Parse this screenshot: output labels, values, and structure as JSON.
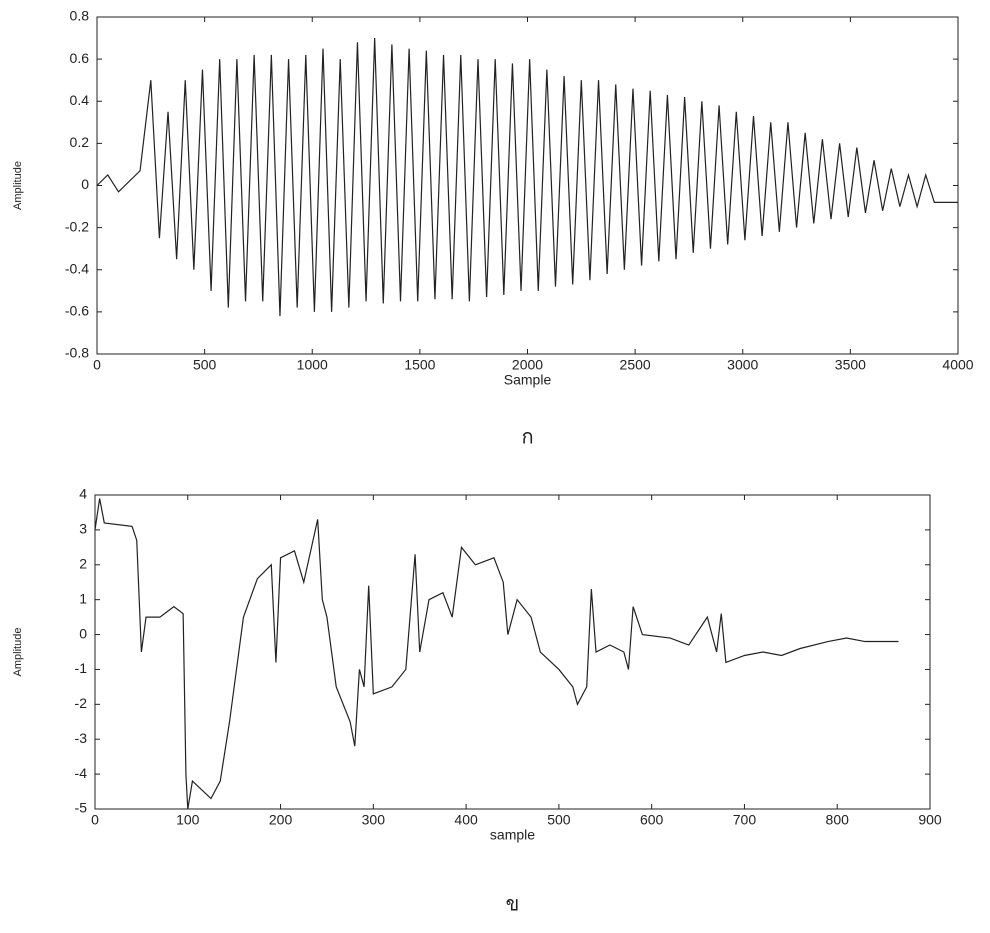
{
  "chart_data": [
    {
      "type": "line",
      "x_label": "Sample",
      "y_label": "Amplitude",
      "caption": "ก",
      "xlim": [
        0,
        4000
      ],
      "xticks": [
        0,
        500,
        1000,
        1500,
        2000,
        2500,
        3000,
        3500,
        4000
      ],
      "ylim": [
        -0.8,
        0.8
      ],
      "yticks": [
        -0.8,
        -0.6,
        -0.4,
        -0.2,
        0,
        0.2,
        0.4,
        0.6,
        0.8
      ],
      "x": [
        0,
        50,
        100,
        200,
        250,
        290,
        330,
        370,
        410,
        450,
        490,
        530,
        570,
        610,
        650,
        690,
        730,
        770,
        810,
        850,
        890,
        930,
        970,
        1010,
        1050,
        1090,
        1130,
        1170,
        1210,
        1250,
        1290,
        1330,
        1370,
        1410,
        1450,
        1490,
        1530,
        1570,
        1610,
        1650,
        1690,
        1730,
        1770,
        1810,
        1850,
        1890,
        1930,
        1970,
        2010,
        2050,
        2090,
        2130,
        2170,
        2210,
        2250,
        2290,
        2330,
        2370,
        2410,
        2450,
        2490,
        2530,
        2570,
        2610,
        2650,
        2690,
        2730,
        2770,
        2810,
        2850,
        2890,
        2930,
        2970,
        3010,
        3050,
        3090,
        3130,
        3170,
        3210,
        3250,
        3290,
        3330,
        3370,
        3410,
        3450,
        3490,
        3530,
        3570,
        3610,
        3650,
        3690,
        3730,
        3770,
        3810,
        3850,
        3890,
        4000
      ],
      "series": [
        {
          "color": "#222222",
          "values": [
            0,
            0.05,
            -0.03,
            0.07,
            0.5,
            -0.25,
            0.35,
            -0.35,
            0.5,
            -0.4,
            0.55,
            -0.5,
            0.6,
            -0.58,
            0.6,
            -0.55,
            0.62,
            -0.55,
            0.62,
            -0.62,
            0.6,
            -0.58,
            0.62,
            -0.6,
            0.65,
            -0.6,
            0.6,
            -0.58,
            0.68,
            -0.55,
            0.7,
            -0.56,
            0.67,
            -0.55,
            0.65,
            -0.55,
            0.64,
            -0.54,
            0.62,
            -0.54,
            0.62,
            -0.55,
            0.6,
            -0.53,
            0.6,
            -0.52,
            0.58,
            -0.5,
            0.6,
            -0.5,
            0.55,
            -0.48,
            0.52,
            -0.47,
            0.5,
            -0.45,
            0.5,
            -0.42,
            0.48,
            -0.4,
            0.46,
            -0.38,
            0.45,
            -0.36,
            0.43,
            -0.35,
            0.42,
            -0.32,
            0.4,
            -0.3,
            0.38,
            -0.28,
            0.35,
            -0.26,
            0.33,
            -0.24,
            0.3,
            -0.22,
            0.3,
            -0.2,
            0.25,
            -0.18,
            0.22,
            -0.16,
            0.2,
            -0.15,
            0.18,
            -0.13,
            0.12,
            -0.12,
            0.08,
            -0.1,
            0.05,
            -0.1,
            0.05,
            -0.08,
            -0.08
          ]
        }
      ]
    },
    {
      "type": "line",
      "x_label": "sample",
      "y_label": "Amplitude",
      "caption": "ข",
      "xlim": [
        0,
        900
      ],
      "xticks": [
        0,
        100,
        200,
        300,
        400,
        500,
        600,
        700,
        800,
        900
      ],
      "ylim": [
        -5,
        4
      ],
      "yticks": [
        -5,
        -4,
        -3,
        -2,
        -1,
        0,
        1,
        2,
        3,
        4
      ],
      "x": [
        0,
        5,
        10,
        40,
        45,
        50,
        55,
        70,
        85,
        95,
        98,
        100,
        105,
        125,
        135,
        145,
        160,
        175,
        190,
        195,
        200,
        215,
        225,
        240,
        245,
        250,
        260,
        275,
        280,
        285,
        290,
        295,
        300,
        320,
        335,
        345,
        350,
        360,
        375,
        385,
        395,
        410,
        430,
        440,
        445,
        455,
        470,
        480,
        500,
        515,
        520,
        530,
        535,
        540,
        555,
        570,
        575,
        580,
        590,
        620,
        640,
        660,
        670,
        675,
        680,
        700,
        720,
        740,
        760,
        790,
        810,
        830,
        866
      ],
      "series": [
        {
          "color": "#222222",
          "values": [
            3.0,
            3.9,
            3.2,
            3.1,
            2.7,
            -0.5,
            0.5,
            0.5,
            0.8,
            0.6,
            -4.0,
            -5.0,
            -4.2,
            -4.7,
            -4.2,
            -2.5,
            0.5,
            1.6,
            2.0,
            -0.8,
            2.2,
            2.4,
            1.5,
            3.3,
            1.0,
            0.5,
            -1.5,
            -2.5,
            -3.2,
            -1.0,
            -1.5,
            1.4,
            -1.7,
            -1.5,
            -1.0,
            2.3,
            -0.5,
            1.0,
            1.2,
            0.5,
            2.5,
            2.0,
            2.2,
            1.5,
            0.0,
            1.0,
            0.5,
            -0.5,
            -1.0,
            -1.5,
            -2.0,
            -1.5,
            1.3,
            -0.5,
            -0.3,
            -0.5,
            -1.0,
            0.8,
            0.0,
            -0.1,
            -0.3,
            0.5,
            -0.5,
            0.6,
            -0.8,
            -0.6,
            -0.5,
            -0.6,
            -0.4,
            -0.2,
            -0.1,
            -0.2,
            -0.2
          ]
        }
      ]
    }
  ]
}
